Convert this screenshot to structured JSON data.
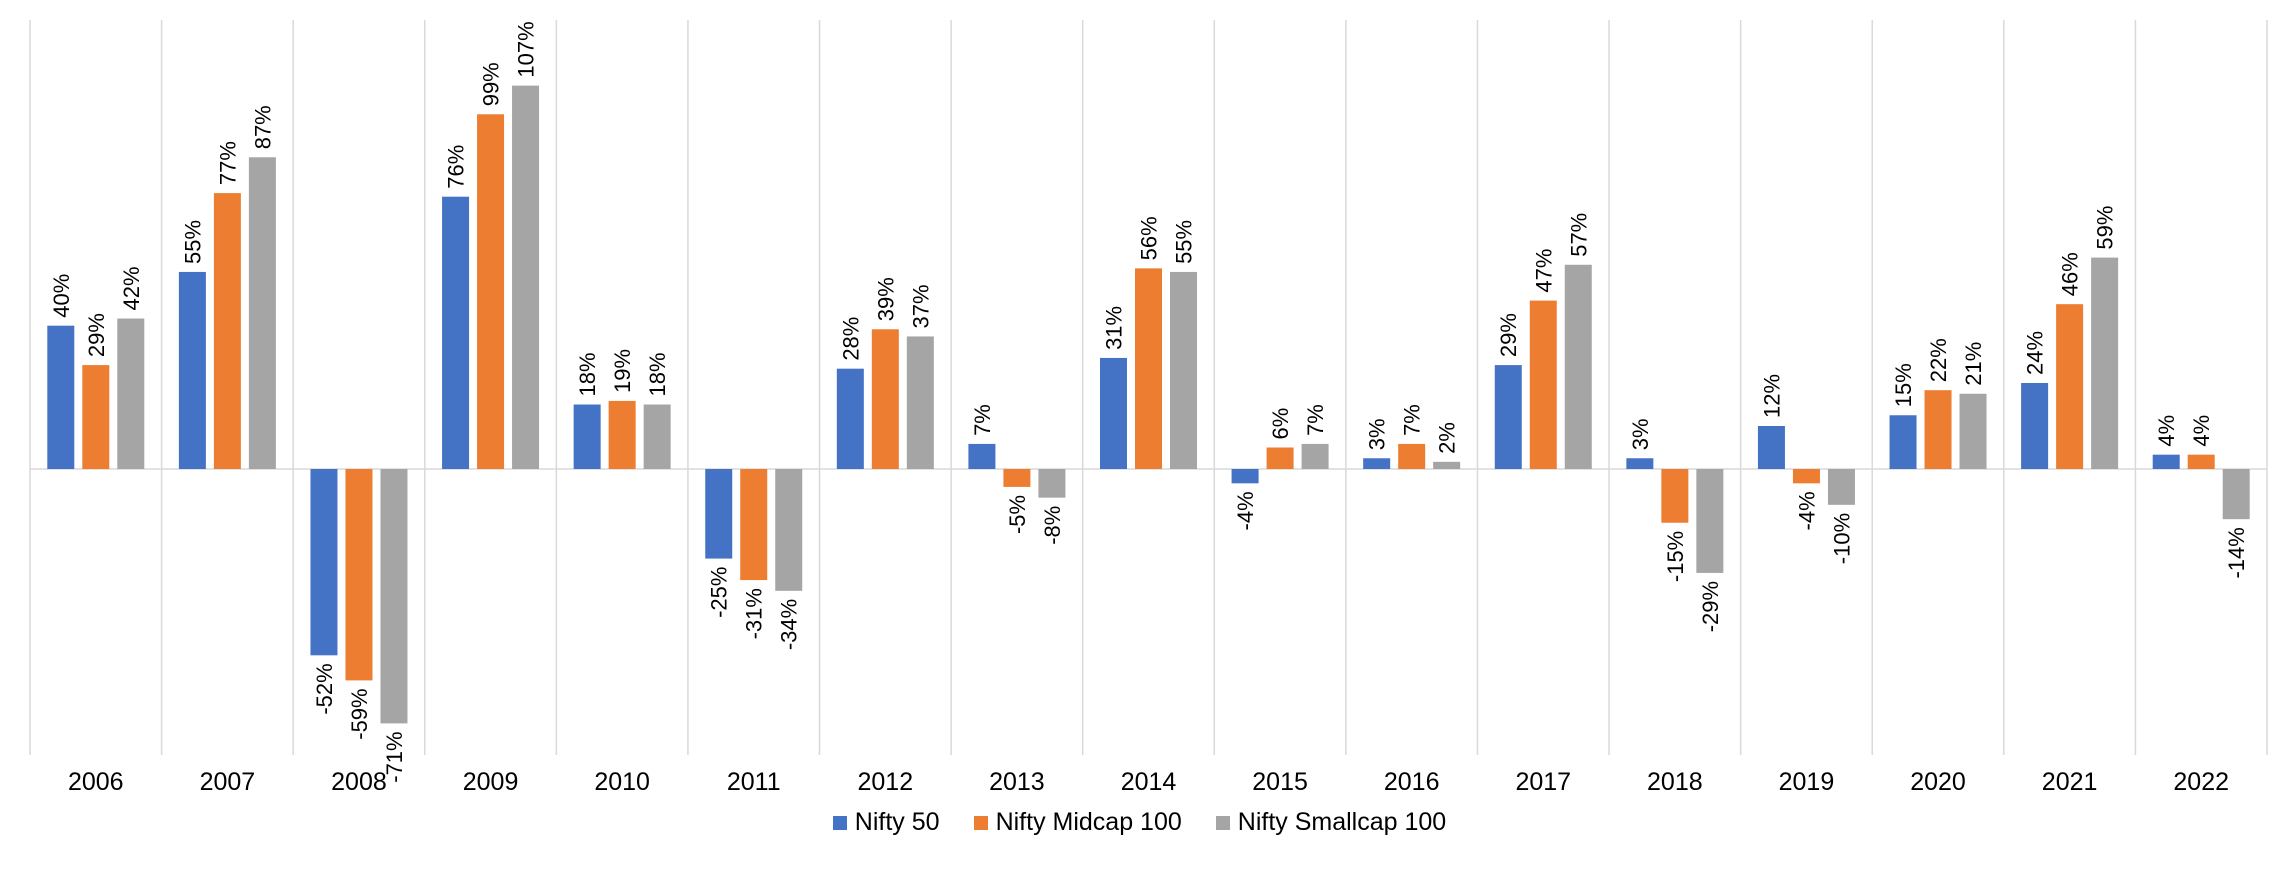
{
  "chart_data": {
    "type": "bar",
    "categories": [
      "2006",
      "2007",
      "2008",
      "2009",
      "2010",
      "2011",
      "2012",
      "2013",
      "2014",
      "2015",
      "2016",
      "2017",
      "2018",
      "2019",
      "2020",
      "2021",
      "2022"
    ],
    "series": [
      {
        "name": "Nifty 50",
        "color": "#4472C4",
        "values": [
          40,
          55,
          -52,
          76,
          18,
          -25,
          28,
          7,
          31,
          -4,
          3,
          29,
          3,
          12,
          15,
          24,
          4
        ]
      },
      {
        "name": "Nifty Midcap 100",
        "color": "#ED7D31",
        "values": [
          29,
          77,
          -59,
          99,
          19,
          -31,
          39,
          -5,
          56,
          6,
          7,
          47,
          -15,
          -4,
          22,
          46,
          4
        ]
      },
      {
        "name": "Nifty Smallcap 100",
        "color": "#A5A5A5",
        "values": [
          42,
          87,
          -71,
          107,
          18,
          -34,
          37,
          -8,
          55,
          7,
          2,
          57,
          -29,
          -10,
          21,
          59,
          -14
        ]
      }
    ],
    "value_suffix": "%",
    "ylim": [
      -80,
      120
    ],
    "grid": "vertical category separators",
    "legend_position": "bottom"
  }
}
